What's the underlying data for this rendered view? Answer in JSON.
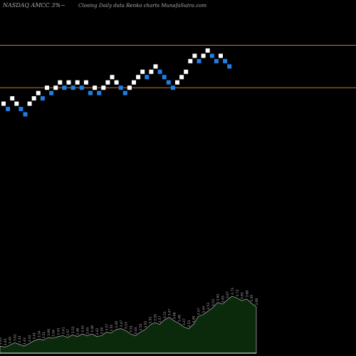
{
  "header": {
    "left_title": "NASDAQ AMCC 3%~",
    "center_title": "Closing Daily data  Renko  charts MunafaSutra.com"
  },
  "colors": {
    "background": "#000000",
    "up_brick": "#ffffff",
    "down_brick": "#1e7fe6",
    "reference_line": "#c8782a",
    "volume_fill": "#0b2a0b",
    "volume_stroke": "#cccccc",
    "text": "#aaaaaa"
  },
  "chart_data": {
    "type": "renko",
    "grid": false,
    "reference_lines": [
      {
        "name": "upper",
        "value": 18.15
      },
      {
        "name": "lower",
        "value": 17.35
      }
    ],
    "price_range": [
      13.0,
      19.0
    ],
    "bricks": [
      {
        "value": 17.05,
        "dir": "up"
      },
      {
        "value": 16.95,
        "dir": "down"
      },
      {
        "value": 17.15,
        "dir": "up"
      },
      {
        "value": 17.05,
        "dir": "up"
      },
      {
        "value": 16.95,
        "dir": "down"
      },
      {
        "value": 16.85,
        "dir": "down"
      },
      {
        "value": 17.05,
        "dir": "up"
      },
      {
        "value": 17.15,
        "dir": "up"
      },
      {
        "value": 17.25,
        "dir": "up"
      },
      {
        "value": 17.15,
        "dir": "down"
      },
      {
        "value": 17.35,
        "dir": "up"
      },
      {
        "value": 17.25,
        "dir": "down"
      },
      {
        "value": 17.35,
        "dir": "up"
      },
      {
        "value": 17.45,
        "dir": "up"
      },
      {
        "value": 17.35,
        "dir": "down"
      },
      {
        "value": 17.45,
        "dir": "up"
      },
      {
        "value": 17.35,
        "dir": "down"
      },
      {
        "value": 17.45,
        "dir": "up"
      },
      {
        "value": 17.35,
        "dir": "down"
      },
      {
        "value": 17.45,
        "dir": "up"
      },
      {
        "value": 17.25,
        "dir": "down"
      },
      {
        "value": 17.35,
        "dir": "up"
      },
      {
        "value": 17.25,
        "dir": "down"
      },
      {
        "value": 17.35,
        "dir": "up"
      },
      {
        "value": 17.45,
        "dir": "up"
      },
      {
        "value": 17.55,
        "dir": "up"
      },
      {
        "value": 17.45,
        "dir": "up"
      },
      {
        "value": 17.35,
        "dir": "down"
      },
      {
        "value": 17.25,
        "dir": "down"
      },
      {
        "value": 17.35,
        "dir": "up"
      },
      {
        "value": 17.45,
        "dir": "up"
      },
      {
        "value": 17.55,
        "dir": "up"
      },
      {
        "value": 17.65,
        "dir": "up"
      },
      {
        "value": 17.55,
        "dir": "down"
      },
      {
        "value": 17.65,
        "dir": "up"
      },
      {
        "value": 17.75,
        "dir": "up"
      },
      {
        "value": 17.65,
        "dir": "down"
      },
      {
        "value": 17.55,
        "dir": "down"
      },
      {
        "value": 17.45,
        "dir": "down"
      },
      {
        "value": 17.35,
        "dir": "down"
      },
      {
        "value": 17.45,
        "dir": "up"
      },
      {
        "value": 17.55,
        "dir": "up"
      },
      {
        "value": 17.65,
        "dir": "up"
      },
      {
        "value": 17.85,
        "dir": "up"
      },
      {
        "value": 17.95,
        "dir": "up"
      },
      {
        "value": 17.85,
        "dir": "down"
      },
      {
        "value": 17.95,
        "dir": "up"
      },
      {
        "value": 18.05,
        "dir": "up"
      },
      {
        "value": 17.95,
        "dir": "down"
      },
      {
        "value": 17.85,
        "dir": "down"
      },
      {
        "value": 17.95,
        "dir": "up"
      },
      {
        "value": 17.85,
        "dir": "down"
      },
      {
        "value": 17.75,
        "dir": "down"
      }
    ],
    "volume": {
      "values": [
        8,
        7,
        9,
        12,
        10,
        8,
        11,
        14,
        16,
        15,
        18,
        17,
        19,
        20,
        18,
        21,
        19,
        22,
        20,
        22,
        19,
        20,
        24,
        23,
        27,
        28,
        26,
        22,
        20,
        24,
        27,
        32,
        35,
        33,
        38,
        41,
        37,
        34,
        30,
        28,
        33,
        42,
        44,
        48,
        52,
        58,
        56,
        61,
        65,
        63,
        60,
        62,
        57,
        53
      ],
      "labels": [
        "3.43",
        "3.45",
        "3.45",
        "3.61",
        "3.34",
        "3.43",
        "3.44",
        "3.41",
        "3.54",
        "3.51",
        "3.66",
        "3.54",
        "3.43",
        "3.41",
        "3.57",
        "3.51",
        "3.46",
        "3.42",
        "3.45",
        "3.48",
        "3.42",
        "3.50",
        "3.57",
        "3.50",
        "3.49",
        "3.47",
        "3.53",
        "3.51",
        "3.44",
        "3.50",
        "3.55",
        "3.51",
        "3.50",
        "3.57",
        "3.51",
        "3.47",
        "3.46",
        "3.48",
        "3.47",
        "3.53",
        "3.46",
        "3.57",
        "3.44",
        "3.53",
        "3.53",
        "3.61",
        "3.65",
        "3.67",
        "3.73",
        "3.73",
        "3.65",
        "3.68",
        "3.59",
        "3.68"
      ]
    }
  }
}
